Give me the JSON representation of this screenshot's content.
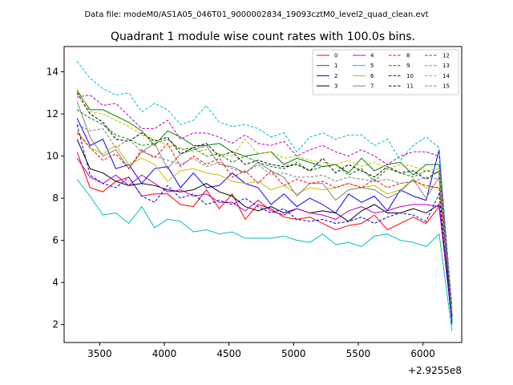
{
  "chart_data": {
    "type": "line",
    "suptitle": "Data file: modeM0/AS1A05_046T01_9000002834_19093cztM0_level2_quad_clean.evt",
    "title": "Quadrant 1 module wise count rates with 100.0s bins.",
    "xlabel": "",
    "ylabel": "",
    "x_offset_label": "+2.9255e8",
    "xlim": [
      3225,
      6300
    ],
    "ylim": [
      1.15,
      15.2
    ],
    "xticks": [
      3500,
      4000,
      4500,
      5000,
      5500,
      6000
    ],
    "yticks": [
      2,
      4,
      6,
      8,
      10,
      12,
      14
    ],
    "x": [
      3325,
      3425,
      3525,
      3625,
      3725,
      3825,
      3925,
      4025,
      4125,
      4225,
      4325,
      4425,
      4525,
      4625,
      4725,
      4825,
      4925,
      5025,
      5125,
      5225,
      5325,
      5425,
      5525,
      5625,
      5725,
      5825,
      5925,
      6025,
      6125,
      6225
    ],
    "legend": {
      "position": "top-right",
      "columns": 4
    },
    "series": [
      {
        "name": "0",
        "color": "#ff0000",
        "dash": "solid",
        "values": [
          10.2,
          8.5,
          8.3,
          8.8,
          9.0,
          8.1,
          8.2,
          8.2,
          7.7,
          7.6,
          8.4,
          7.5,
          8.2,
          7.0,
          7.7,
          7.5,
          7.1,
          7.0,
          7.1,
          6.8,
          6.5,
          6.7,
          6.8,
          7.2,
          6.5,
          6.8,
          7.1,
          6.8,
          7.6,
          2.5
        ]
      },
      {
        "name": "1",
        "color": "#008000",
        "dash": "solid",
        "values": [
          13.1,
          12.2,
          12.2,
          11.9,
          11.6,
          11.2,
          10.5,
          11.2,
          10.9,
          10.5,
          10.5,
          10.6,
          10.2,
          10.0,
          10.1,
          10.2,
          9.6,
          9.9,
          9.7,
          9.5,
          9.6,
          9.2,
          9.9,
          9.3,
          9.6,
          9.7,
          9.1,
          9.6,
          9.6,
          2.0
        ]
      },
      {
        "name": "2",
        "color": "#0000ff",
        "dash": "solid",
        "values": [
          11.8,
          10.5,
          10.8,
          9.4,
          9.6,
          8.7,
          9.4,
          9.5,
          8.5,
          9.2,
          8.5,
          8.6,
          9.2,
          8.7,
          8.5,
          7.7,
          8.2,
          7.6,
          8.0,
          7.7,
          7.3,
          8.2,
          7.8,
          8.1,
          7.4,
          8.4,
          8.1,
          7.9,
          10.3,
          2.2
        ]
      },
      {
        "name": "3",
        "color": "#000000",
        "dash": "solid",
        "values": [
          10.8,
          9.4,
          9.2,
          8.8,
          8.6,
          8.7,
          8.6,
          8.4,
          8.3,
          8.4,
          8.7,
          8.3,
          8.1,
          7.6,
          7.4,
          7.6,
          7.3,
          7.5,
          7.3,
          7.4,
          7.3,
          6.9,
          7.4,
          7.7,
          7.3,
          7.3,
          7.5,
          7.3,
          7.7,
          2.4
        ]
      },
      {
        "name": "4",
        "color": "#bf00bf",
        "dash": "solid",
        "values": [
          9.9,
          9.0,
          8.7,
          9.1,
          8.6,
          9.1,
          8.7,
          8.3,
          8.4,
          8.1,
          8.2,
          7.8,
          7.8,
          7.4,
          7.9,
          7.4,
          7.2,
          7.5,
          7.3,
          7.2,
          7.0,
          7.4,
          7.6,
          7.3,
          7.4,
          7.6,
          7.7,
          7.7,
          7.6,
          2.1
        ]
      },
      {
        "name": "5",
        "color": "#00bfbf",
        "dash": "solid",
        "values": [
          8.9,
          8.1,
          7.2,
          7.3,
          6.8,
          7.6,
          6.6,
          7.0,
          6.9,
          6.4,
          6.5,
          6.3,
          6.4,
          6.1,
          6.1,
          6.1,
          6.2,
          6.0,
          5.9,
          6.3,
          5.8,
          5.9,
          5.7,
          6.2,
          6.3,
          6.0,
          5.9,
          5.7,
          6.3,
          1.7
        ]
      },
      {
        "name": "6",
        "color": "#bfbf00",
        "dash": "solid",
        "values": [
          11.2,
          10.4,
          10.1,
          10.5,
          9.6,
          9.9,
          9.6,
          8.8,
          9.3,
          9.4,
          9.2,
          9.1,
          8.8,
          8.7,
          8.8,
          8.4,
          8.6,
          8.2,
          8.5,
          8.4,
          8.5,
          8.7,
          8.5,
          8.6,
          8.2,
          8.4,
          8.9,
          8.5,
          8.5,
          2.6
        ]
      },
      {
        "name": "7",
        "color": "#808080",
        "dash": "solid",
        "values": [
          12.6,
          10.9,
          10.0,
          10.3,
          9.4,
          10.2,
          10.6,
          9.4,
          10.1,
          10.3,
          10.5,
          9.6,
          9.5,
          9.2,
          9.7,
          9.3,
          9.0,
          8.1,
          8.7,
          8.7,
          7.9,
          8.4,
          8.5,
          8.4,
          8.0,
          8.3,
          8.9,
          8.0,
          9.0,
          2.3
        ]
      },
      {
        "name": "8",
        "color": "#ff0000",
        "dash": "dashed",
        "values": [
          11.1,
          10.4,
          9.8,
          10.1,
          9.4,
          10.3,
          9.9,
          10.6,
          9.5,
          10.0,
          9.6,
          9.9,
          9.0,
          9.3,
          8.7,
          9.3,
          8.6,
          8.9,
          8.7,
          8.8,
          8.5,
          8.7,
          8.5,
          8.9,
          8.5,
          8.7,
          8.8,
          8.6,
          8.5,
          2.7
        ]
      },
      {
        "name": "9",
        "color": "#008000",
        "dash": "dashed",
        "values": [
          12.2,
          11.8,
          11.5,
          11.0,
          10.8,
          10.5,
          10.6,
          10.8,
          10.3,
          10.4,
          10.0,
          10.1,
          9.7,
          10.0,
          9.7,
          9.5,
          9.4,
          9.7,
          9.3,
          9.5,
          9.6,
          9.1,
          9.4,
          8.8,
          9.4,
          9.2,
          9.0,
          9.3,
          9.2,
          2.2
        ]
      },
      {
        "name": "10",
        "color": "#0000ff",
        "dash": "dashed",
        "values": [
          11.5,
          9.1,
          8.7,
          8.5,
          9.0,
          8.1,
          7.8,
          8.6,
          8.0,
          8.2,
          7.7,
          7.9,
          7.7,
          8.0,
          7.6,
          7.3,
          7.5,
          7.0,
          6.9,
          7.0,
          6.8,
          6.9,
          7.1,
          6.8,
          7.1,
          7.3,
          7.2,
          6.9,
          8.2,
          2.0
        ]
      },
      {
        "name": "11",
        "color": "#000000",
        "dash": "dashed",
        "values": [
          13.0,
          12.0,
          11.6,
          10.8,
          10.7,
          11.1,
          10.7,
          10.9,
          10.1,
          10.4,
          10.6,
          10.0,
          10.2,
          9.6,
          9.8,
          9.6,
          9.5,
          9.6,
          9.3,
          9.9,
          9.2,
          9.6,
          9.3,
          9.0,
          9.5,
          9.2,
          9.3,
          8.9,
          9.3,
          2.4
        ]
      },
      {
        "name": "12",
        "color": "#bf00bf",
        "dash": "dashed",
        "values": [
          12.8,
          12.9,
          12.4,
          12.5,
          11.9,
          11.3,
          11.3,
          11.7,
          10.8,
          11.1,
          11.1,
          10.9,
          10.6,
          11.0,
          10.6,
          10.5,
          10.7,
          10.0,
          10.3,
          10.5,
          10.2,
          10.0,
          10.3,
          10.0,
          9.6,
          10.0,
          10.2,
          10.2,
          10.0,
          2.9
        ]
      },
      {
        "name": "13",
        "color": "#00bfbf",
        "dash": "dashed",
        "values": [
          14.5,
          13.7,
          13.2,
          12.9,
          13.0,
          12.1,
          12.5,
          12.2,
          11.5,
          11.7,
          12.4,
          11.6,
          11.4,
          11.5,
          11.3,
          10.9,
          11.1,
          10.2,
          10.9,
          11.1,
          10.8,
          11.0,
          11.0,
          10.5,
          10.8,
          9.8,
          10.5,
          10.9,
          10.4,
          2.5
        ]
      },
      {
        "name": "14",
        "color": "#bfbf00",
        "dash": "dashed",
        "values": [
          13.2,
          12.1,
          12.0,
          11.7,
          11.4,
          11.0,
          10.8,
          10.5,
          10.4,
          10.2,
          10.3,
          10.1,
          10.0,
          10.8,
          10.1,
          10.2,
          9.9,
          10.0,
          9.8,
          9.7,
          9.6,
          9.8,
          9.5,
          9.7,
          9.4,
          9.6,
          9.5,
          9.3,
          9.4,
          2.6
        ]
      },
      {
        "name": "15",
        "color": "#808080",
        "dash": "dashed",
        "values": [
          11.5,
          11.2,
          11.3,
          10.4,
          10.8,
          10.2,
          10.0,
          9.8,
          9.6,
          9.9,
          9.5,
          9.7,
          9.4,
          9.2,
          9.6,
          9.1,
          9.2,
          9.0,
          9.0,
          9.1,
          8.8,
          9.0,
          8.9,
          8.8,
          8.9,
          8.7,
          8.8,
          9.0,
          8.9,
          2.8
        ]
      }
    ]
  }
}
